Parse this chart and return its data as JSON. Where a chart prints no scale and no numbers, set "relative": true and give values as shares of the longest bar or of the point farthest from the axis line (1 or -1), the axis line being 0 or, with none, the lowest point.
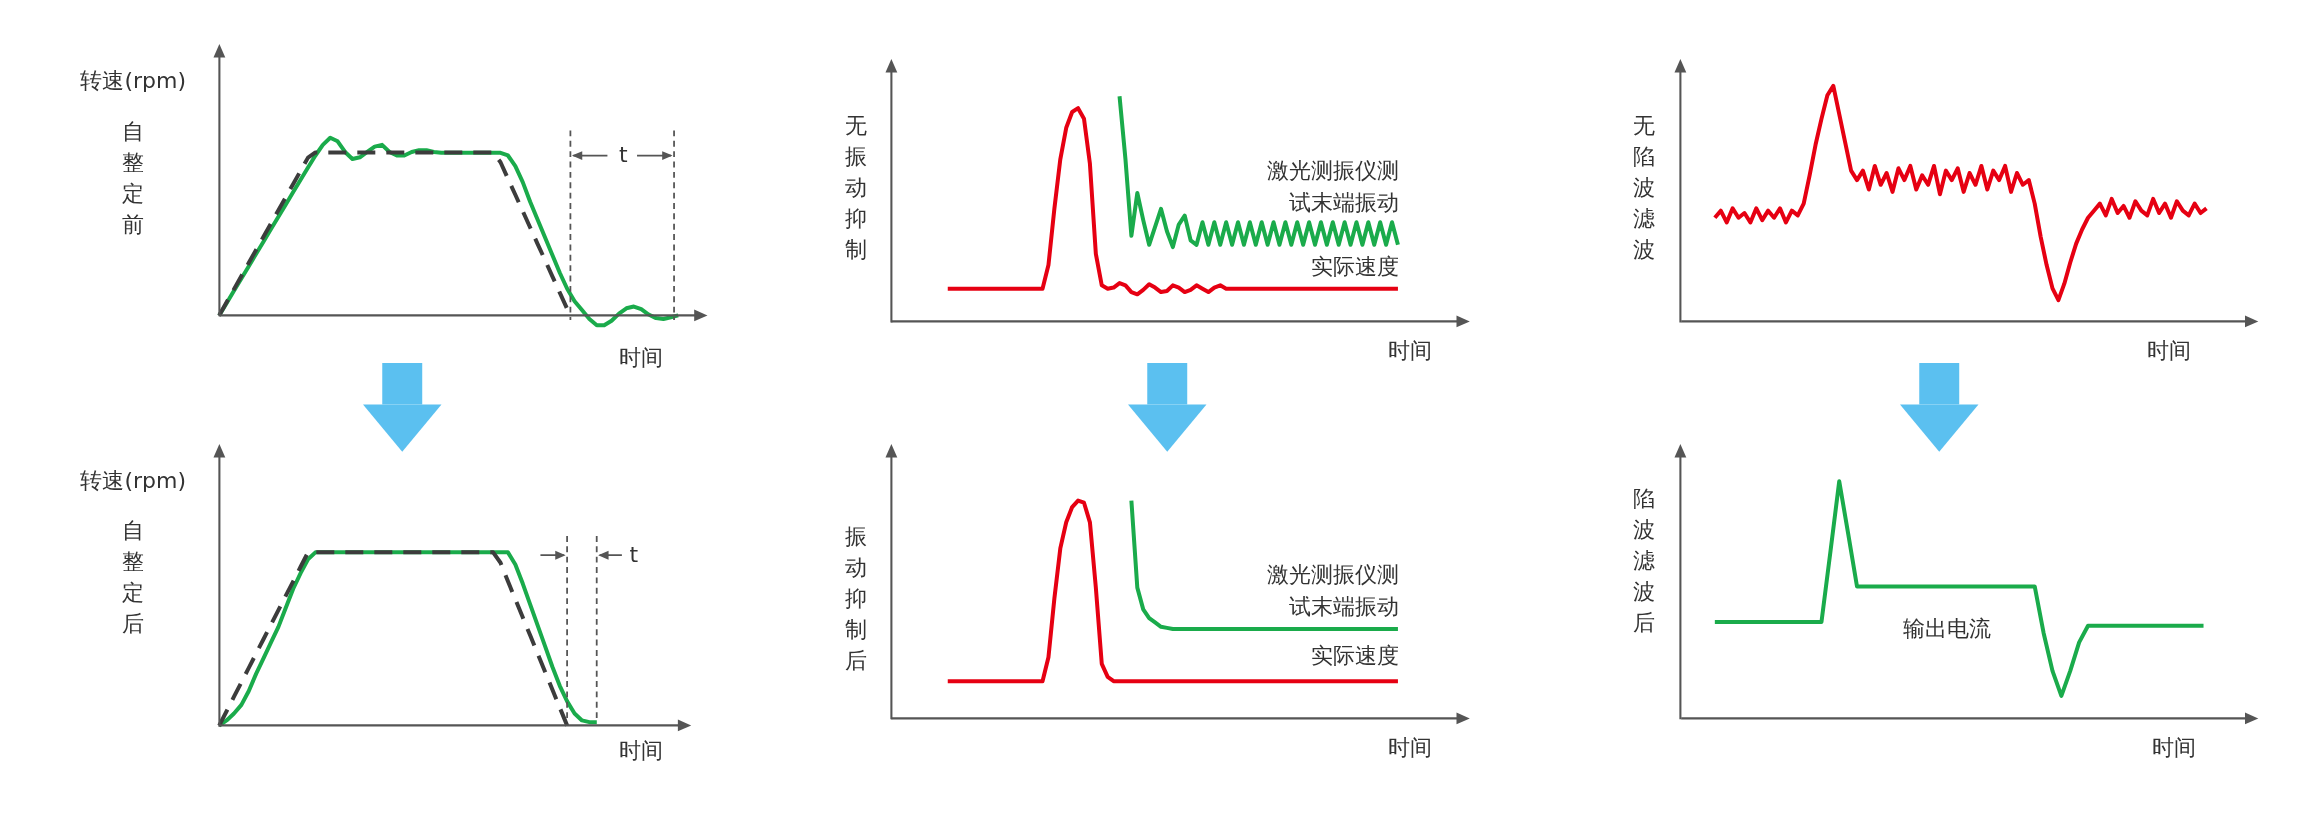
{
  "chart_data": [
    {
      "type": "line",
      "title": "自整定前",
      "ylabel": "转速(rpm)",
      "xlabel": "时间",
      "relative": true,
      "annotations": [
        "t"
      ],
      "categories": [
        null,
        null,
        null,
        null,
        null,
        null,
        null,
        null,
        null,
        null,
        null,
        null,
        null,
        null,
        null,
        null,
        null,
        null,
        null,
        null,
        null,
        null,
        null,
        null,
        null,
        null,
        null,
        null,
        null,
        null,
        null,
        null,
        null,
        null,
        null,
        null,
        null,
        null,
        null,
        null,
        null,
        null,
        null,
        null,
        null,
        null,
        null,
        null,
        null,
        null,
        null,
        null,
        null,
        null,
        null,
        null,
        null,
        null,
        null,
        null,
        null,
        null,
        null
      ],
      "series": [
        {
          "color": "#3c3c3c",
          "line_style": "dashed",
          "values": [
            0,
            0.074,
            0.148,
            0.222,
            0.296,
            0.37,
            0.444,
            0.518,
            0.592,
            0.666,
            0.74,
            0.814,
            0.888,
            0.917,
            0.917,
            0.917,
            0.917,
            0.917,
            0.917,
            0.917,
            0.917,
            0.917,
            0.917,
            0.917,
            0.917,
            0.917,
            0.917,
            0.917,
            0.917,
            0.917,
            0.917,
            0.917,
            0.917,
            0.917,
            0.917,
            0.917,
            0.917,
            0.917,
            0.862,
            0.77,
            0.679,
            0.587,
            0.495,
            0.403,
            0.312,
            0.22,
            0.128,
            0.037,
            null,
            null,
            null,
            null,
            null,
            null,
            null,
            null,
            null,
            null,
            null,
            null,
            null,
            null,
            null
          ]
        },
        {
          "color": "#1aab4b",
          "values": [
            0,
            0.069,
            0.139,
            0.208,
            0.277,
            0.347,
            0.416,
            0.486,
            0.555,
            0.624,
            0.694,
            0.763,
            0.832,
            0.9,
            0.96,
            1,
            0.98,
            0.92,
            0.88,
            0.89,
            0.92,
            0.95,
            0.96,
            0.92,
            0.9,
            0.9,
            0.92,
            0.93,
            0.93,
            0.92,
            0.915,
            0.915,
            0.915,
            0.915,
            0.915,
            0.915,
            0.915,
            0.915,
            0.915,
            0.9,
            0.84,
            0.75,
            0.64,
            0.54,
            0.44,
            0.34,
            0.24,
            0.15,
            0.08,
            0.03,
            -0.02,
            -0.055,
            -0.055,
            -0.03,
            0.01,
            0.04,
            0.05,
            0.035,
            0.005,
            -0.015,
            -0.02,
            -0.01,
            0
          ]
        }
      ]
    },
    {
      "type": "line",
      "title": "无振动抑制",
      "xlabel": "时间",
      "relative": true,
      "categories": [
        null,
        null,
        null,
        null,
        null,
        null,
        null,
        null,
        null,
        null,
        null,
        null,
        null,
        null,
        null,
        null,
        null,
        null,
        null,
        null,
        null,
        null,
        null,
        null,
        null,
        null,
        null,
        null,
        null,
        null,
        null,
        null,
        null,
        null,
        null,
        null,
        null,
        null,
        null,
        null,
        null,
        null,
        null,
        null,
        null,
        null,
        null,
        null,
        null,
        null,
        null,
        null,
        null,
        null,
        null,
        null,
        null,
        null,
        null,
        null,
        null,
        null,
        null,
        null,
        null,
        null,
        null,
        null,
        null,
        null,
        null,
        null,
        null,
        null,
        null,
        null,
        null
      ],
      "series": [
        {
          "name": "实际速度",
          "color": "#e60012",
          "values": [
            0.145,
            0.145,
            0.145,
            0.145,
            0.145,
            0.145,
            0.145,
            0.145,
            0.145,
            0.145,
            0.145,
            0.145,
            0.145,
            0.145,
            0.145,
            0.145,
            0.145,
            0.25,
            0.5,
            0.72,
            0.86,
            0.93,
            0.947,
            0.9,
            0.7,
            0.3,
            0.16,
            0.145,
            0.15,
            0.17,
            0.16,
            0.13,
            0.12,
            0.14,
            0.165,
            0.15,
            0.13,
            0.135,
            0.16,
            0.15,
            0.13,
            0.14,
            0.16,
            0.145,
            0.13,
            0.15,
            0.16,
            0.145,
            0.145,
            0.145,
            0.145,
            0.145,
            0.145,
            0.145,
            0.145,
            0.145,
            0.145,
            0.145,
            0.145,
            0.145,
            0.145,
            0.145,
            0.145,
            0.145,
            0.145,
            0.145,
            0.145,
            0.145,
            0.145,
            0.145,
            0.145,
            0.145,
            0.145,
            0.145,
            0.145,
            0.145,
            0.145
          ]
        },
        {
          "name": "激光测振仪测试末端振动",
          "color": "#1aab4b",
          "values": [
            null,
            null,
            null,
            null,
            null,
            null,
            null,
            null,
            null,
            null,
            null,
            null,
            null,
            null,
            null,
            null,
            null,
            null,
            null,
            null,
            null,
            null,
            null,
            null,
            null,
            null,
            null,
            null,
            null,
            1,
            0.72,
            0.38,
            0.57,
            0.45,
            0.34,
            0.42,
            0.5,
            0.4,
            0.33,
            0.43,
            0.47,
            0.36,
            0.34,
            0.44,
            0.34,
            0.44,
            0.34,
            0.44,
            0.34,
            0.44,
            0.34,
            0.44,
            0.34,
            0.44,
            0.34,
            0.44,
            0.34,
            0.44,
            0.34,
            0.44,
            0.34,
            0.44,
            0.34,
            0.44,
            0.34,
            0.44,
            0.34,
            0.44,
            0.34,
            0.44,
            0.34,
            0.44,
            0.34,
            0.44,
            0.34,
            0.44,
            0.34
          ]
        }
      ]
    },
    {
      "type": "line",
      "title": "无陷波滤波",
      "xlabel": "时间",
      "relative": true,
      "categories": [
        null,
        null,
        null,
        null,
        null,
        null,
        null,
        null,
        null,
        null,
        null,
        null,
        null,
        null,
        null,
        null,
        null,
        null,
        null,
        null,
        null,
        null,
        null,
        null,
        null,
        null,
        null,
        null,
        null,
        null,
        null,
        null,
        null,
        null,
        null,
        null,
        null,
        null,
        null,
        null,
        null,
        null,
        null,
        null,
        null,
        null,
        null,
        null,
        null,
        null,
        null,
        null,
        null,
        null,
        null,
        null,
        null,
        null,
        null,
        null,
        null,
        null,
        null,
        null,
        null,
        null,
        null,
        null,
        null,
        null,
        null,
        null,
        null,
        null,
        null,
        null,
        null,
        null,
        null,
        null,
        null,
        null,
        null,
        null
      ],
      "series": [
        {
          "color": "#e60012",
          "values": [
            0.44,
            0.47,
            0.42,
            0.48,
            0.44,
            0.46,
            0.42,
            0.48,
            0.43,
            0.47,
            0.44,
            0.48,
            0.42,
            0.47,
            0.45,
            0.5,
            0.62,
            0.75,
            0.86,
            0.96,
            1,
            0.88,
            0.76,
            0.64,
            0.6,
            0.64,
            0.56,
            0.66,
            0.58,
            0.63,
            0.55,
            0.65,
            0.6,
            0.66,
            0.56,
            0.62,
            0.58,
            0.66,
            0.54,
            0.64,
            0.6,
            0.65,
            0.55,
            0.63,
            0.58,
            0.66,
            0.56,
            0.64,
            0.6,
            0.66,
            0.55,
            0.63,
            0.58,
            0.6,
            0.5,
            0.36,
            0.24,
            0.14,
            0.09,
            0.16,
            0.25,
            0.33,
            0.39,
            0.44,
            0.47,
            0.5,
            0.45,
            0.52,
            0.46,
            0.49,
            0.44,
            0.51,
            0.47,
            0.45,
            0.52,
            0.46,
            0.5,
            0.44,
            0.51,
            0.47,
            0.45,
            0.5,
            0.46,
            0.48
          ]
        }
      ]
    },
    {
      "type": "line",
      "title": "自整定后",
      "ylabel": "转速(rpm)",
      "xlabel": "时间",
      "relative": true,
      "annotations": [
        "t"
      ],
      "categories": [
        null,
        null,
        null,
        null,
        null,
        null,
        null,
        null,
        null,
        null,
        null,
        null,
        null,
        null,
        null,
        null,
        null,
        null,
        null,
        null,
        null,
        null,
        null,
        null,
        null,
        null,
        null,
        null,
        null,
        null,
        null,
        null,
        null,
        null,
        null,
        null,
        null,
        null,
        null,
        null,
        null,
        null,
        null,
        null,
        null,
        null,
        null,
        null,
        null,
        null,
        null,
        null,
        null,
        null,
        null,
        null,
        null,
        null,
        null,
        null,
        null,
        null,
        null
      ],
      "series": [
        {
          "color": "#3c3c3c",
          "line_style": "dashed",
          "values": [
            0,
            0.083,
            0.167,
            0.25,
            0.333,
            0.417,
            0.5,
            0.583,
            0.667,
            0.75,
            0.833,
            0.917,
            1,
            1,
            1,
            1,
            1,
            1,
            1,
            1,
            1,
            1,
            1,
            1,
            1,
            1,
            1,
            1,
            1,
            1,
            1,
            1,
            1,
            1,
            1,
            1,
            1,
            1,
            0.94,
            0.833,
            0.729,
            0.625,
            0.521,
            0.417,
            0.313,
            0.208,
            0.104,
            0,
            null,
            null,
            null,
            null,
            null,
            null,
            null,
            null,
            null,
            null,
            null,
            null,
            null,
            null,
            null
          ]
        },
        {
          "color": "#1aab4b",
          "values": [
            0,
            0.03,
            0.07,
            0.12,
            0.2,
            0.3,
            0.39,
            0.48,
            0.57,
            0.68,
            0.79,
            0.88,
            0.96,
            1,
            1,
            1,
            1,
            1,
            1,
            1,
            1,
            1,
            1,
            1,
            1,
            1,
            1,
            1,
            1,
            1,
            1,
            1,
            1,
            1,
            1,
            1,
            1,
            1,
            1,
            1,
            0.93,
            0.82,
            0.7,
            0.58,
            0.46,
            0.34,
            0.23,
            0.14,
            0.07,
            0.03,
            0.02,
            0.02,
            null,
            null,
            null,
            null,
            null,
            null,
            null,
            null,
            null,
            null,
            null
          ]
        }
      ]
    },
    {
      "type": "line",
      "title": "振动抑制后",
      "xlabel": "时间",
      "relative": true,
      "categories": [
        null,
        null,
        null,
        null,
        null,
        null,
        null,
        null,
        null,
        null,
        null,
        null,
        null,
        null,
        null,
        null,
        null,
        null,
        null,
        null,
        null,
        null,
        null,
        null,
        null,
        null,
        null,
        null,
        null,
        null,
        null,
        null,
        null,
        null,
        null,
        null,
        null,
        null,
        null,
        null,
        null,
        null,
        null,
        null,
        null,
        null,
        null,
        null,
        null,
        null,
        null,
        null,
        null,
        null,
        null,
        null,
        null,
        null,
        null,
        null,
        null,
        null,
        null,
        null,
        null,
        null,
        null,
        null,
        null,
        null,
        null,
        null,
        null,
        null,
        null,
        null,
        null
      ],
      "series": [
        {
          "name": "实际速度",
          "color": "#e60012",
          "values": [
            0.17,
            0.17,
            0.17,
            0.17,
            0.17,
            0.17,
            0.17,
            0.17,
            0.17,
            0.17,
            0.17,
            0.17,
            0.17,
            0.17,
            0.17,
            0.17,
            0.17,
            0.28,
            0.55,
            0.78,
            0.9,
            0.97,
            1,
            0.99,
            0.9,
            0.6,
            0.25,
            0.19,
            0.17,
            0.17,
            0.17,
            0.17,
            0.17,
            0.17,
            0.17,
            0.17,
            0.17,
            0.17,
            0.17,
            0.17,
            0.17,
            0.17,
            0.17,
            0.17,
            0.17,
            0.17,
            0.17,
            0.17,
            0.17,
            0.17,
            0.17,
            0.17,
            0.17,
            0.17,
            0.17,
            0.17,
            0.17,
            0.17,
            0.17,
            0.17,
            0.17,
            0.17,
            0.17,
            0.17,
            0.17,
            0.17,
            0.17,
            0.17,
            0.17,
            0.17,
            0.17,
            0.17,
            0.17,
            0.17,
            0.17,
            0.17,
            0.17
          ]
        },
        {
          "name": "激光测振仪测试末端振动",
          "color": "#1aab4b",
          "values": [
            null,
            null,
            null,
            null,
            null,
            null,
            null,
            null,
            null,
            null,
            null,
            null,
            null,
            null,
            null,
            null,
            null,
            null,
            null,
            null,
            null,
            null,
            null,
            null,
            null,
            null,
            null,
            null,
            null,
            null,
            null,
            1,
            0.6,
            0.5,
            0.46,
            0.44,
            0.42,
            0.415,
            0.41,
            0.41,
            0.41,
            0.41,
            0.41,
            0.41,
            0.41,
            0.41,
            0.41,
            0.41,
            0.41,
            0.41,
            0.41,
            0.41,
            0.41,
            0.41,
            0.41,
            0.41,
            0.41,
            0.41,
            0.41,
            0.41,
            0.41,
            0.41,
            0.41,
            0.41,
            0.41,
            0.41,
            0.41,
            0.41,
            0.41,
            0.41,
            0.41,
            0.41,
            0.41,
            0.41,
            0.41,
            0.41,
            0.41
          ]
        }
      ]
    },
    {
      "type": "line",
      "title": "陷波滤波后",
      "xlabel": "时间",
      "relative": true,
      "categories": [
        null,
        null,
        null,
        null,
        null,
        null,
        null,
        null,
        null,
        null,
        null,
        null,
        null,
        null,
        null,
        null,
        null,
        null,
        null,
        null,
        null,
        null,
        null,
        null,
        null,
        null,
        null,
        null,
        null,
        null,
        null,
        null,
        null,
        null,
        null,
        null,
        null,
        null,
        null,
        null,
        null,
        null,
        null,
        null,
        null,
        null,
        null,
        null,
        null,
        null,
        null,
        null,
        null,
        null,
        null,
        null
      ],
      "series": [
        {
          "name": "输出电流",
          "color": "#1aab4b",
          "values": [
            0.406,
            0.406,
            0.406,
            0.406,
            0.406,
            0.406,
            0.406,
            0.406,
            0.406,
            0.406,
            0.406,
            0.406,
            0.406,
            0.7,
            1,
            0.78,
            0.556,
            0.556,
            0.556,
            0.556,
            0.556,
            0.556,
            0.556,
            0.556,
            0.556,
            0.556,
            0.556,
            0.556,
            0.556,
            0.556,
            0.556,
            0.556,
            0.556,
            0.556,
            0.556,
            0.556,
            0.556,
            0.36,
            0.2,
            0.094,
            0.2,
            0.32,
            0.39,
            0.39,
            0.39,
            0.39,
            0.39,
            0.39,
            0.39,
            0.39,
            0.39,
            0.39,
            0.39,
            0.39,
            0.39,
            0.39
          ]
        }
      ]
    }
  ]
}
